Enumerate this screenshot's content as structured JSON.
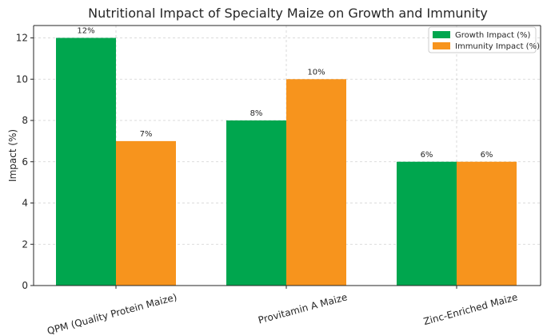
{
  "chart_data": {
    "type": "bar",
    "title": "Nutritional Impact of Specialty Maize on Growth and Immunity",
    "xlabel": "",
    "ylabel": "Impact (%)",
    "categories": [
      "QPM (Quality Protein Maize)",
      "Provitamin A Maize",
      "Zinc-Enriched Maize"
    ],
    "series": [
      {
        "name": "Growth Impact (%)",
        "color": "#00a64e",
        "values": [
          12,
          8,
          6
        ],
        "labels": [
          "12%",
          "8%",
          "6%"
        ]
      },
      {
        "name": "Immunity Impact (%)",
        "color": "#f7941d",
        "values": [
          7,
          10,
          6
        ],
        "labels": [
          "7%",
          "10%",
          "6%"
        ]
      }
    ],
    "ylim": [
      0,
      12.6
    ],
    "yticks": [
      0,
      2,
      4,
      6,
      8,
      10,
      12
    ],
    "ytick_labels": [
      "0",
      "2",
      "4",
      "6",
      "8",
      "10",
      "12"
    ],
    "grid": true,
    "legend_position": "top-right"
  }
}
